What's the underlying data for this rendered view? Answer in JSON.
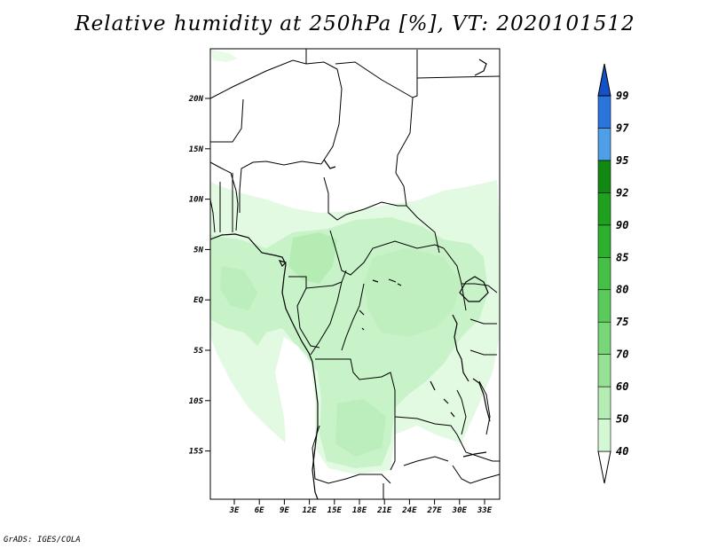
{
  "title": "Relative humidity at 250hPa [%], VT: 2020101512",
  "credit": "GrADS: IGES/COLA",
  "map": {
    "lat_labels": [
      "20N",
      "15N",
      "10N",
      "5N",
      "EQ",
      "5S",
      "10S",
      "15S"
    ],
    "lon_labels": [
      "3E",
      "6E",
      "9E",
      "12E",
      "15E",
      "18E",
      "21E",
      "24E",
      "27E",
      "30E",
      "33E"
    ]
  },
  "colorbar": {
    "labels": [
      "40",
      "50",
      "60",
      "70",
      "75",
      "80",
      "85",
      "90",
      "92",
      "95",
      "97",
      "99"
    ],
    "colors": [
      "#f0fff0",
      "#d4f7d4",
      "#b4ecb4",
      "#96e196",
      "#78d678",
      "#5acb5a",
      "#46bf46",
      "#2db02d",
      "#1fa01f",
      "#118811",
      "#4e9ee8",
      "#2a75dc",
      "#1450c8"
    ]
  }
}
